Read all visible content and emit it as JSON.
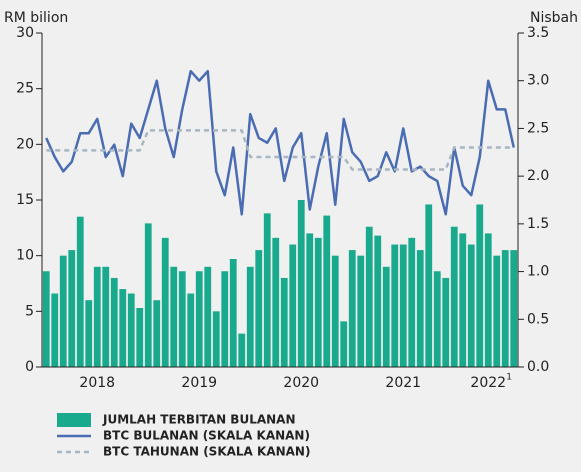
{
  "chart_data": {
    "type": "bar",
    "y_axis_label": "RM bilion",
    "y2_axis_label": "Nisbah",
    "categories": [
      null,
      null,
      null,
      null,
      null,
      null,
      "2018",
      null,
      null,
      null,
      null,
      null,
      null,
      null,
      null,
      null,
      null,
      null,
      "2019",
      null,
      null,
      null,
      null,
      null,
      null,
      null,
      null,
      null,
      null,
      null,
      "2020",
      null,
      null,
      null,
      null,
      null,
      null,
      null,
      null,
      null,
      null,
      null,
      "2021",
      null,
      null,
      null,
      null,
      null,
      null,
      null,
      null,
      null,
      "2022",
      null,
      null,
      null
    ],
    "category_note": "1",
    "ylim": [
      0,
      30
    ],
    "yticks": [
      0,
      5,
      10,
      15,
      20,
      25,
      30
    ],
    "y2lim": [
      0,
      3.5
    ],
    "y2ticks": [
      {
        "value": 0,
        "label": "0.0"
      },
      {
        "value": 0.5,
        "label": "0.5"
      },
      {
        "value": 1,
        "label": "1.0"
      },
      {
        "value": 1.5,
        "label": "1.5"
      },
      {
        "value": 2,
        "label": "2.0"
      },
      {
        "value": 2.5,
        "label": "2.5"
      },
      {
        "value": 3,
        "label": "3.0"
      },
      {
        "value": 3.5,
        "label": "3.5"
      }
    ],
    "series": [
      {
        "name": "JUMLAH TERBITAN BULANAN",
        "type": "bar",
        "color": "#19a98c",
        "values": [
          8.6,
          6.6,
          10,
          10.5,
          13.5,
          6,
          9,
          9,
          8,
          7,
          6.6,
          5.3,
          12.9,
          6,
          11.6,
          9,
          8.6,
          6.6,
          8.6,
          9,
          5,
          8.6,
          9.7,
          3,
          9,
          10.5,
          13.8,
          11.6,
          8,
          11,
          15,
          12,
          11.6,
          13.6,
          10,
          4.1,
          10.5,
          10,
          12.6,
          11.8,
          9,
          11,
          11,
          11.6,
          10.5,
          14.6,
          8.6,
          8,
          12.6,
          12,
          11,
          14.6,
          12,
          10,
          10.5,
          10.5
        ]
      },
      {
        "name": "BTC BULANAN (SKALA KANAN)",
        "type": "line",
        "axis": "y2",
        "color": "#4a6cb3",
        "values": [
          2.4,
          2.2,
          2.05,
          2.15,
          2.45,
          2.45,
          2.6,
          2.2,
          2.33,
          2.0,
          2.55,
          2.4,
          2.7,
          3.0,
          2.5,
          2.2,
          2.7,
          3.1,
          3.0,
          3.1,
          2.05,
          1.8,
          2.3,
          1.6,
          2.65,
          2.4,
          2.35,
          2.5,
          1.95,
          2.3,
          2.45,
          1.65,
          2.1,
          2.45,
          1.7,
          2.6,
          2.25,
          2.15,
          1.95,
          2.0,
          2.25,
          2.05,
          2.5,
          2.05,
          2.1,
          2.0,
          1.95,
          1.6,
          2.3,
          1.9,
          1.8,
          2.2,
          3.0,
          2.7,
          2.7,
          2.3
        ]
      },
      {
        "name": "BTC TAHUNAN (SKALA KANAN)",
        "type": "line",
        "axis": "y2",
        "color": "#a7b6c2",
        "dashed": true,
        "values": [
          2.27,
          2.27,
          2.27,
          2.27,
          2.27,
          2.27,
          2.27,
          2.27,
          2.27,
          2.27,
          2.27,
          2.27,
          2.48,
          2.48,
          2.48,
          2.48,
          2.48,
          2.48,
          2.48,
          2.48,
          2.48,
          2.48,
          2.48,
          2.48,
          2.2,
          2.2,
          2.2,
          2.2,
          2.2,
          2.2,
          2.2,
          2.2,
          2.2,
          2.2,
          2.2,
          2.2,
          2.07,
          2.07,
          2.07,
          2.07,
          2.07,
          2.07,
          2.07,
          2.07,
          2.07,
          2.07,
          2.07,
          2.07,
          2.3,
          2.3,
          2.3,
          2.3,
          2.3,
          2.3,
          2.3,
          2.3
        ]
      }
    ]
  }
}
